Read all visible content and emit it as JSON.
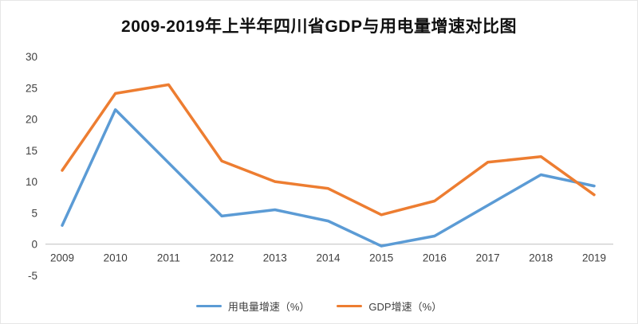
{
  "title": "2009-2019年上半年四川省GDP与用电量增速对比图",
  "chart_data": {
    "type": "line",
    "categories": [
      "2009",
      "2010",
      "2011",
      "2012",
      "2013",
      "2014",
      "2015",
      "2016",
      "2017",
      "2018",
      "2019"
    ],
    "series": [
      {
        "name": "用电量增速（%）",
        "color": "#5B9BD5",
        "values": [
          3,
          21.5,
          13,
          4.5,
          5.5,
          3.7,
          -0.3,
          1.3,
          6.2,
          11.1,
          9.3
        ]
      },
      {
        "name": "GDP增速（%）",
        "color": "#ED7D31",
        "values": [
          11.8,
          24.1,
          25.5,
          13.3,
          10,
          8.9,
          4.7,
          6.9,
          13.1,
          14,
          7.9
        ]
      }
    ],
    "title": "2009-2019年上半年四川省GDP与用电量增速对比图",
    "xlabel": "",
    "ylabel": "",
    "ylim": [
      -5,
      30
    ],
    "ytick_step": 5,
    "grid": false,
    "legend_position": "bottom"
  }
}
